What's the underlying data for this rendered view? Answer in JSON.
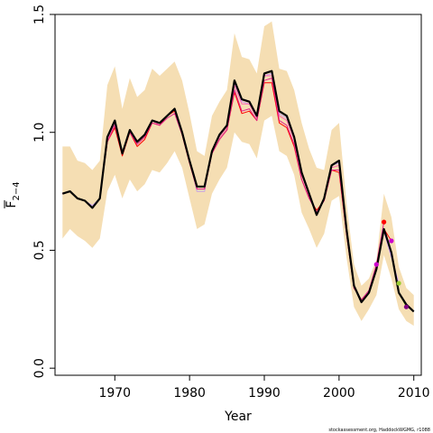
{
  "chart_data": {
    "type": "line",
    "xlabel": "Year",
    "ylabel_main": "F",
    "ylabel_sub": "2−4",
    "credit": "stockassessment.org, HaddockWGMG, r1088",
    "xlim": [
      1962,
      2011
    ],
    "ylim": [
      -0.03,
      1.5
    ],
    "x_ticks": [
      1970,
      1980,
      1990,
      2000,
      2010
    ],
    "y_ticks": [
      0.0,
      0.5,
      1.0,
      1.5
    ],
    "y_tick_labels": [
      "0.0",
      "0.5",
      "1.0",
      "1.5"
    ],
    "grid": false,
    "colors": {
      "band": "#f5deb3",
      "main_line": "#000000",
      "retro_lines": [
        "#e0218a",
        "#ff0000",
        "#ff69b4",
        "#d0a0ff",
        "#9acd32",
        "#228b22"
      ],
      "end_points": [
        "#800080",
        "#cc00cc",
        "#ff0000",
        "#cc00cc",
        "#9acd32",
        "#800080"
      ]
    },
    "years": [
      1963,
      1964,
      1965,
      1966,
      1967,
      1968,
      1969,
      1970,
      1971,
      1972,
      1973,
      1974,
      1975,
      1976,
      1977,
      1978,
      1979,
      1980,
      1981,
      1982,
      1983,
      1984,
      1985,
      1986,
      1987,
      1988,
      1989,
      1990,
      1991,
      1992,
      1993,
      1994,
      1995,
      1996,
      1997,
      1998,
      1999,
      2000,
      2001,
      2002,
      2003,
      2004,
      2005,
      2006,
      2007,
      2008,
      2009,
      2010
    ],
    "band_upper": [
      0.94,
      0.94,
      0.88,
      0.87,
      0.84,
      0.88,
      1.2,
      1.28,
      1.1,
      1.23,
      1.15,
      1.18,
      1.27,
      1.24,
      1.27,
      1.3,
      1.22,
      1.08,
      0.92,
      0.9,
      1.07,
      1.13,
      1.18,
      1.42,
      1.32,
      1.31,
      1.25,
      1.45,
      1.47,
      1.27,
      1.26,
      1.18,
      1.04,
      0.93,
      0.85,
      0.84,
      1.01,
      1.04,
      0.7,
      0.44,
      0.35,
      0.38,
      0.46,
      0.74,
      0.64,
      0.43,
      0.34,
      0.31
    ],
    "band_lower": [
      0.55,
      0.59,
      0.56,
      0.54,
      0.51,
      0.55,
      0.75,
      0.82,
      0.72,
      0.8,
      0.75,
      0.78,
      0.84,
      0.83,
      0.87,
      0.92,
      0.85,
      0.72,
      0.59,
      0.61,
      0.74,
      0.8,
      0.85,
      1.0,
      0.96,
      0.95,
      0.89,
      1.05,
      1.07,
      0.92,
      0.9,
      0.82,
      0.66,
      0.59,
      0.51,
      0.57,
      0.71,
      0.73,
      0.47,
      0.26,
      0.2,
      0.25,
      0.31,
      0.48,
      0.38,
      0.25,
      0.2,
      0.18
    ],
    "series": [
      {
        "values": [
          0.74,
          0.75,
          0.72,
          0.71,
          0.68,
          0.72,
          0.98,
          1.05,
          0.91,
          1.01,
          0.96,
          0.99,
          1.05,
          1.04,
          1.07,
          1.1,
          1.0,
          0.88,
          0.77,
          0.77,
          0.92,
          0.99,
          1.03,
          1.22,
          1.14,
          1.13,
          1.07,
          1.25,
          1.26,
          1.09,
          1.07,
          0.98,
          0.83,
          0.74,
          0.65,
          0.72,
          0.86,
          0.88,
          0.59,
          0.35,
          0.28,
          0.32,
          0.42,
          0.59,
          0.49,
          0.32,
          0.27,
          0.24
        ]
      },
      {
        "values": [
          0.74,
          0.75,
          0.72,
          0.71,
          0.68,
          0.72,
          0.96,
          1.03,
          0.91,
          1.0,
          0.95,
          0.98,
          1.04,
          1.03,
          1.06,
          1.08,
          0.99,
          0.87,
          0.76,
          0.76,
          0.91,
          0.97,
          1.01,
          1.18,
          1.09,
          1.1,
          1.05,
          1.22,
          1.23,
          1.05,
          1.03,
          0.95,
          0.8,
          0.72,
          0.66,
          0.71,
          0.84,
          0.84,
          0.57,
          0.34,
          0.29,
          0.33,
          0.44,
          0.62,
          null,
          null,
          null,
          null
        ]
      },
      {
        "values": [
          0.74,
          0.75,
          0.72,
          0.71,
          0.68,
          0.72,
          0.96,
          1.02,
          0.9,
          1.0,
          0.94,
          0.97,
          1.04,
          1.03,
          1.07,
          1.09,
          0.99,
          0.87,
          0.76,
          0.76,
          0.91,
          0.97,
          1.01,
          1.17,
          1.08,
          1.09,
          1.05,
          1.21,
          1.21,
          1.04,
          1.02,
          0.94,
          0.8,
          0.72,
          0.67,
          0.71,
          0.84,
          0.83,
          0.57,
          0.34,
          0.29,
          0.32,
          0.43,
          0.59,
          0.54,
          null,
          null,
          null
        ]
      },
      {
        "values": [
          0.74,
          0.75,
          0.72,
          0.71,
          0.68,
          0.72,
          0.97,
          1.04,
          0.91,
          1.01,
          0.95,
          0.98,
          1.05,
          1.03,
          1.07,
          1.1,
          1.0,
          0.88,
          0.76,
          0.76,
          0.92,
          0.98,
          1.02,
          1.2,
          1.12,
          1.12,
          1.06,
          1.24,
          1.24,
          1.07,
          1.05,
          0.97,
          0.82,
          0.73,
          0.66,
          0.72,
          0.85,
          0.86,
          0.58,
          0.35,
          0.28,
          0.32,
          0.44,
          null,
          null,
          null,
          null,
          null
        ]
      },
      {
        "values": [
          0.74,
          0.75,
          0.72,
          0.71,
          0.69,
          0.72,
          0.98,
          1.05,
          0.91,
          1.01,
          0.96,
          0.99,
          1.05,
          1.04,
          1.07,
          1.1,
          1.0,
          0.88,
          0.75,
          0.75,
          0.92,
          0.99,
          1.03,
          1.21,
          1.13,
          1.12,
          1.06,
          1.24,
          1.25,
          1.08,
          1.06,
          0.98,
          0.83,
          0.74,
          0.66,
          0.72,
          0.86,
          0.87,
          0.58,
          0.35,
          0.29,
          0.33,
          0.43,
          0.58,
          0.47,
          0.36,
          null,
          null
        ]
      },
      {
        "values": [
          0.74,
          0.75,
          0.72,
          0.71,
          0.69,
          0.72,
          0.97,
          1.04,
          0.91,
          1.01,
          0.95,
          0.98,
          1.05,
          1.04,
          1.07,
          1.1,
          1.0,
          0.88,
          0.75,
          0.75,
          0.92,
          0.98,
          1.02,
          1.2,
          1.13,
          1.12,
          1.06,
          1.24,
          1.25,
          1.08,
          1.06,
          0.98,
          0.82,
          0.74,
          0.66,
          0.72,
          0.86,
          0.87,
          0.58,
          0.35,
          0.29,
          0.33,
          0.42,
          0.59,
          0.48,
          0.32,
          0.26,
          null
        ]
      }
    ],
    "end_points": [
      {
        "x": 2005,
        "y": 0.44
      },
      {
        "x": 2006,
        "y": 0.62
      },
      {
        "x": 2007,
        "y": 0.54
      },
      {
        "x": 2008,
        "y": 0.36
      },
      {
        "x": 2009,
        "y": 0.26
      }
    ]
  }
}
